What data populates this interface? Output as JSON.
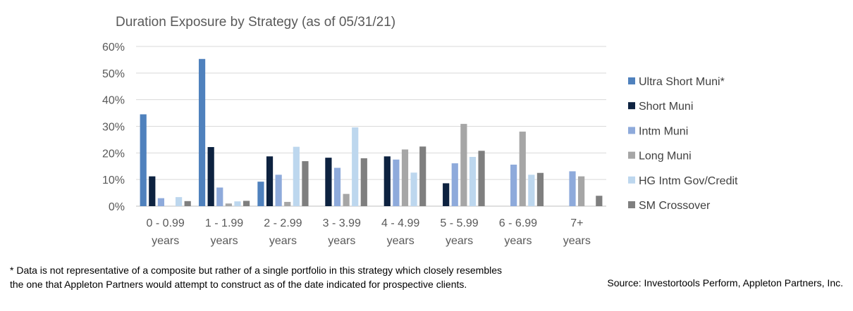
{
  "chart_data": {
    "type": "bar",
    "title": "Duration Exposure by Strategy (as of 05/31/21)",
    "categories": [
      [
        "0 - 0.99",
        "years"
      ],
      [
        "1 - 1.99",
        "years"
      ],
      [
        "2 - 2.99",
        "years"
      ],
      [
        "3 - 3.99",
        "years"
      ],
      [
        "4 - 4.99",
        "years"
      ],
      [
        "5 - 5.99",
        "years"
      ],
      [
        "6 - 6.99",
        "years"
      ],
      [
        "7+",
        "years"
      ]
    ],
    "y_ticks": [
      "0%",
      "10%",
      "20%",
      "30%",
      "40%",
      "50%",
      "60%"
    ],
    "ylim": [
      0,
      60
    ],
    "grid": true,
    "legend_position": "right",
    "series": [
      {
        "name": "Ultra Short Muni*",
        "color": "#4f81bd",
        "values": [
          34.5,
          55.3,
          9.2,
          0,
          0,
          0,
          0,
          0
        ]
      },
      {
        "name": "Short Muni",
        "color": "#0d2240",
        "values": [
          11.2,
          22.2,
          18.7,
          18.2,
          18.7,
          8.6,
          0,
          0
        ]
      },
      {
        "name": "Intm Muni",
        "color": "#8eaadb",
        "values": [
          3.0,
          7.0,
          11.8,
          14.4,
          17.5,
          16.1,
          15.6,
          13.1
        ]
      },
      {
        "name": "Long Muni",
        "color": "#a6a6a6",
        "values": [
          0,
          1.0,
          1.6,
          4.6,
          21.3,
          30.9,
          28.0,
          11.2
        ]
      },
      {
        "name": "HG Intm Gov/Credit",
        "color": "#bdd7ee",
        "values": [
          3.4,
          1.8,
          22.3,
          29.6,
          12.6,
          18.5,
          11.8,
          0
        ]
      },
      {
        "name": "SM Crossover",
        "color": "#7f7f7f",
        "values": [
          1.9,
          2.0,
          16.9,
          18.0,
          22.4,
          20.8,
          12.5,
          3.9
        ]
      }
    ]
  },
  "footnote": "* Data is not representative of a composite but rather of a single portfolio in this strategy which closely resembles the one that Appleton Partners would attempt to construct as of the date indicated for prospective clients.",
  "source": "Source: Investortools Perform, Appleton Partners, Inc."
}
